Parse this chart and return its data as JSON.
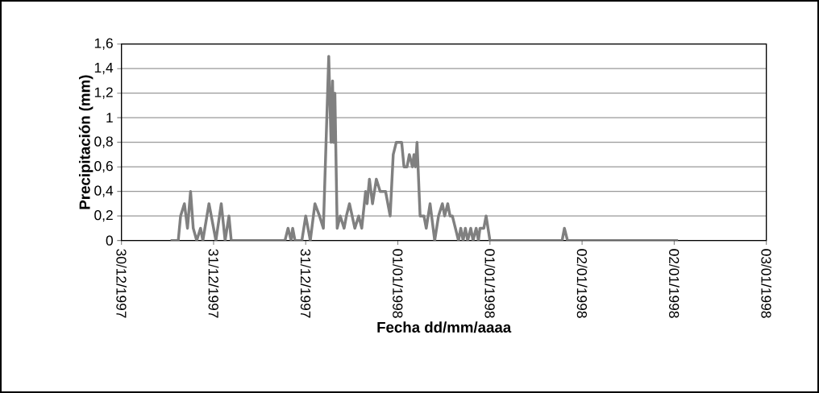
{
  "chart_data": {
    "type": "line",
    "xlabel": "Fecha dd/mm/aaaa",
    "ylabel": "Precipitación (mm)",
    "x": [
      "1997-12-30T18:24",
      "1997-12-30T19:24",
      "1997-12-30T19:42",
      "1997-12-30T20:12",
      "1997-12-30T20:36",
      "1997-12-30T21:00",
      "1997-12-30T21:21",
      "1997-12-30T21:48",
      "1997-12-30T22:18",
      "1997-12-30T22:36",
      "1997-12-30T23:24",
      "1997-12-31T00:18",
      "1997-12-31T01:00",
      "1997-12-31T01:30",
      "1997-12-31T02:00",
      "1997-12-31T02:18",
      "1997-12-31T09:18",
      "1997-12-31T09:42",
      "1997-12-31T10:06",
      "1997-12-31T10:18",
      "1997-12-31T10:36",
      "1997-12-31T11:30",
      "1997-12-31T12:00",
      "1997-12-31T12:36",
      "1997-12-31T13:12",
      "1997-12-31T13:48",
      "1997-12-31T14:18",
      "1997-12-31T15:00",
      "1997-12-31T15:18",
      "1997-12-31T15:30",
      "1997-12-31T15:36",
      "1997-12-31T15:48",
      "1997-12-31T16:06",
      "1997-12-31T16:30",
      "1997-12-31T17:00",
      "1997-12-31T17:18",
      "1997-12-31T17:42",
      "1997-12-31T18:24",
      "1997-12-31T18:54",
      "1997-12-31T19:18",
      "1997-12-31T19:48",
      "1997-12-31T20:00",
      "1997-12-31T20:18",
      "1997-12-31T20:42",
      "1997-12-31T21:12",
      "1997-12-31T21:42",
      "1997-12-31T22:24",
      "1997-12-31T22:42",
      "1997-12-31T23:00",
      "1997-12-31T23:24",
      "1997-12-31T23:48",
      "1998-01-01T00:30",
      "1998-01-01T00:48",
      "1998-01-01T01:12",
      "1998-01-01T01:30",
      "1998-01-01T01:54",
      "1998-01-01T02:06",
      "1998-01-01T02:18",
      "1998-01-01T02:30",
      "1998-01-01T02:54",
      "1998-01-01T03:24",
      "1998-01-01T03:42",
      "1998-01-01T04:12",
      "1998-01-01T04:48",
      "1998-01-01T05:18",
      "1998-01-01T05:48",
      "1998-01-01T06:06",
      "1998-01-01T06:30",
      "1998-01-01T06:48",
      "1998-01-01T07:06",
      "1998-01-01T07:30",
      "1998-01-01T07:54",
      "1998-01-01T08:12",
      "1998-01-01T08:30",
      "1998-01-01T08:48",
      "1998-01-01T09:06",
      "1998-01-01T09:30",
      "1998-01-01T09:48",
      "1998-01-01T10:12",
      "1998-01-01T10:30",
      "1998-01-01T10:42",
      "1998-01-01T11:12",
      "1998-01-01T11:30",
      "1998-01-01T12:00",
      "1998-01-01T21:24",
      "1998-01-01T21:42",
      "1998-01-01T22:06",
      "1998-01-02T12:30"
    ],
    "series": [
      {
        "color": "#808080",
        "values": [
          0,
          0,
          0.2,
          0.3,
          0.1,
          0.4,
          0.1,
          0,
          0.1,
          0,
          0.3,
          0,
          0.3,
          0,
          0.2,
          0,
          0,
          0.1,
          0,
          0.1,
          0,
          0,
          0.2,
          0,
          0.3,
          0.2,
          0.1,
          1.5,
          0.8,
          1.3,
          0.8,
          1.2,
          0.1,
          0.2,
          0.1,
          0.2,
          0.3,
          0.1,
          0.2,
          0.1,
          0.4,
          0.3,
          0.5,
          0.3,
          0.5,
          0.4,
          0.4,
          0.3,
          0.2,
          0.7,
          0.8,
          0.8,
          0.6,
          0.6,
          0.7,
          0.6,
          0.7,
          0.6,
          0.8,
          0.2,
          0.2,
          0.1,
          0.3,
          0,
          0.2,
          0.3,
          0.2,
          0.3,
          0.2,
          0.2,
          0.1,
          0,
          0.1,
          0,
          0.1,
          0,
          0.1,
          0,
          0.1,
          0,
          0.1,
          0.1,
          0.2,
          0,
          0,
          0.1,
          0,
          0
        ]
      }
    ],
    "xlim": [
      "1997-12-30T12:00",
      "1998-01-03T00:00"
    ],
    "xticks": [
      {
        "value": "1997-12-30T12:00",
        "label": "30/12/1997"
      },
      {
        "value": "1997-12-31T00:00",
        "label": "31/12/1997"
      },
      {
        "value": "1997-12-31T12:00",
        "label": "31/12/1997"
      },
      {
        "value": "1998-01-01T00:00",
        "label": "01/01/1998"
      },
      {
        "value": "1998-01-01T12:00",
        "label": "01/01/1998"
      },
      {
        "value": "1998-01-02T00:00",
        "label": "02/01/1998"
      },
      {
        "value": "1998-01-02T12:00",
        "label": "02/01/1998"
      },
      {
        "value": "1998-01-03T00:00",
        "label": "03/01/1998"
      }
    ],
    "ylim": [
      0,
      1.6
    ],
    "yticks": [
      0,
      {
        "value": 0.2,
        "label": "0,2"
      },
      {
        "value": 0.4,
        "label": "0,4"
      },
      {
        "value": 0.6,
        "label": "0,6"
      },
      {
        "value": 0.8,
        "label": "0,8"
      },
      1,
      {
        "value": 1.2,
        "label": "1,2"
      },
      {
        "value": 1.4,
        "label": "1,4"
      },
      {
        "value": 1.6,
        "label": "1,6"
      }
    ],
    "grid": "y",
    "legend": false,
    "marker": "none",
    "line_style": "solid"
  }
}
